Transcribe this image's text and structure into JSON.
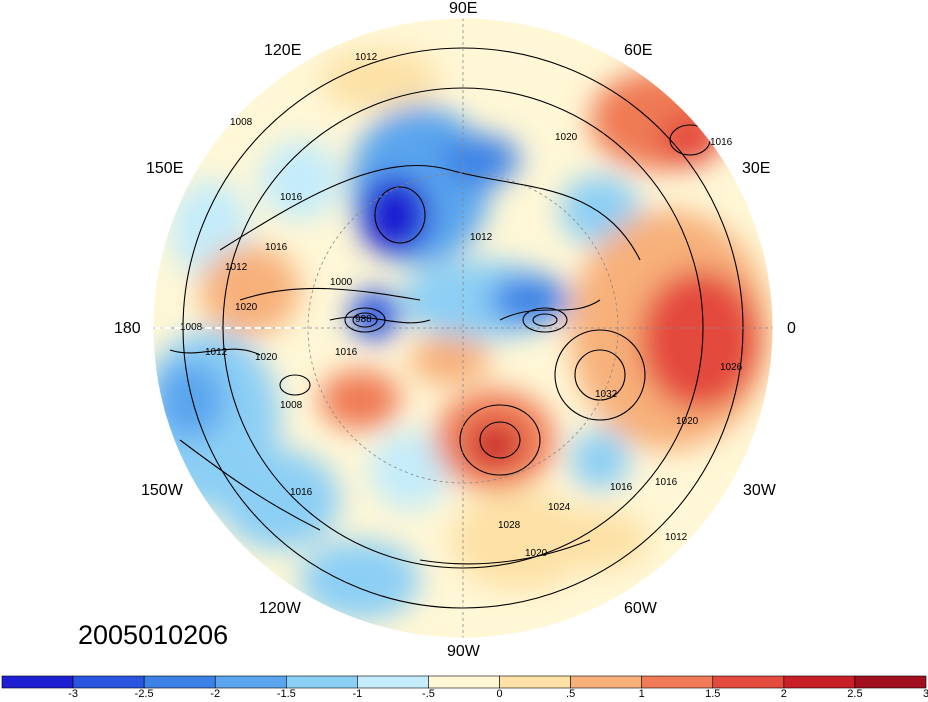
{
  "timestamp": "2005010206",
  "lon_labels": {
    "e90": "90E",
    "e120": "120E",
    "e60": "60E",
    "e150": "150E",
    "e30": "30E",
    "d180": "180",
    "d0": "0",
    "w150": "150W",
    "w30": "30W",
    "w120": "120W",
    "w60": "60W",
    "w90": "90W"
  },
  "contour_labels": [
    "1012",
    "1008",
    "1016",
    "1016",
    "1012",
    "1020",
    "1012",
    "1008",
    "1020",
    "1016",
    "1008",
    "1016",
    "1028",
    "1024",
    "1020",
    "1016",
    "1032",
    "1020",
    "1016",
    "1012",
    "1026",
    "1016",
    "1020",
    "1012",
    "1000",
    "988"
  ],
  "colorbar": {
    "colors": [
      "#1e1ed2",
      "#2a55e0",
      "#3c82e6",
      "#5aa5ee",
      "#8ccff5",
      "#c4ecfa",
      "#fff7d6",
      "#fde1a6",
      "#f7b07a",
      "#ef7a55",
      "#e44a3e",
      "#c81e28",
      "#a0101e"
    ],
    "ticks": [
      "-3",
      "-2.5",
      "-2",
      "-1.5",
      "-1",
      "-.5",
      "0",
      ".5",
      "1",
      "1.5",
      "2",
      "2.5",
      "3"
    ]
  }
}
